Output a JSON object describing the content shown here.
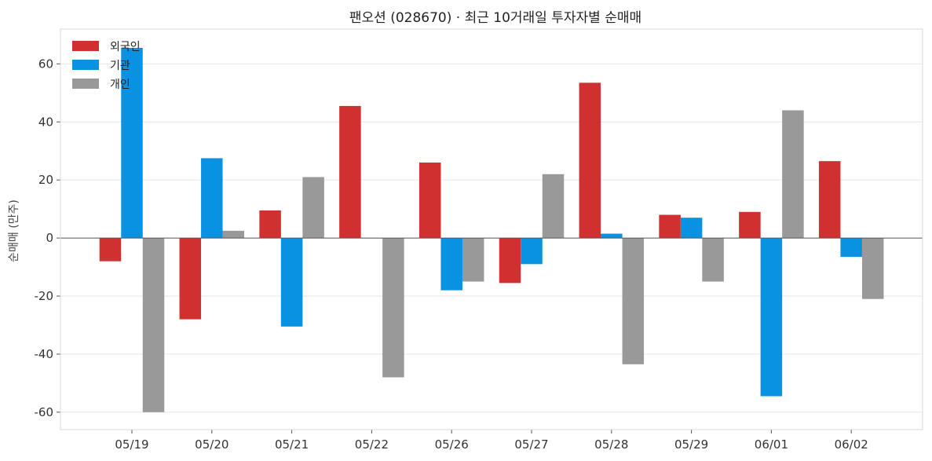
{
  "chart_data": {
    "type": "bar",
    "title": "팬오션 (028670) · 최근 10거래일 투자자별 순매매",
    "xlabel": "",
    "ylabel": "순매매 (만주)",
    "categories": [
      "05/19",
      "05/20",
      "05/21",
      "05/22",
      "05/26",
      "05/27",
      "05/28",
      "05/29",
      "06/01",
      "06/02"
    ],
    "series": [
      {
        "name": "외국인",
        "color": "#d0302f",
        "values": [
          -8,
          -28,
          9.5,
          45.5,
          26,
          -15.5,
          53.5,
          8,
          9,
          26.5
        ]
      },
      {
        "name": "기관",
        "color": "#0a92e2",
        "values": [
          65.5,
          27.5,
          -30.5,
          0,
          -18,
          -9,
          1.5,
          7,
          -54.5,
          -6.5
        ]
      },
      {
        "name": "개인",
        "color": "#999999",
        "values": [
          -60,
          2.5,
          21,
          -48,
          -15,
          22,
          -43.5,
          -15,
          44,
          -21
        ]
      }
    ],
    "ylim": [
      -66,
      72
    ],
    "yticks": [
      -60,
      -40,
      -20,
      0,
      20,
      40,
      60
    ],
    "legend_position": "top-left",
    "grid": true
  }
}
